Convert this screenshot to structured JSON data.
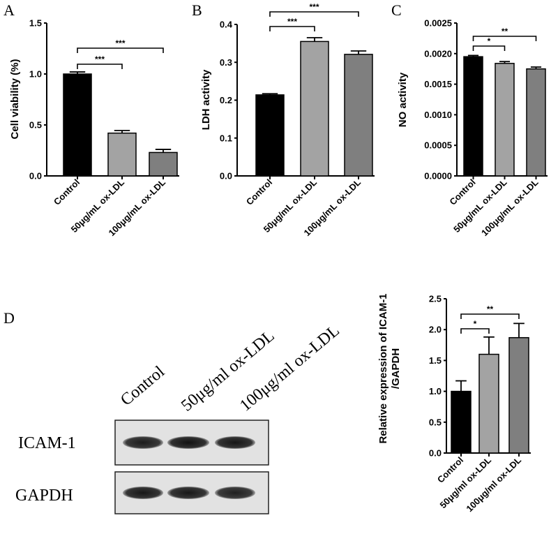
{
  "panel_letters": {
    "a": "A",
    "b": "B",
    "c": "C",
    "d": "D"
  },
  "chart_data": [
    {
      "id": "A",
      "type": "bar",
      "ylabel": "Cell viability (%)",
      "categories": [
        "Control",
        "50μg/mL ox-LDL",
        "100μg/mL ox-LDL"
      ],
      "values": [
        1.0,
        0.42,
        0.23
      ],
      "errors": [
        0.02,
        0.025,
        0.03
      ],
      "ylim": [
        0,
        1.5
      ],
      "yticks": [
        0.0,
        0.5,
        1.0,
        1.5
      ],
      "tick_labels": [
        "0.0",
        "0.5",
        "1.0",
        "1.5"
      ],
      "colors": [
        "#000000",
        "#a3a3a3",
        "#7f7f7f"
      ],
      "significance": [
        {
          "from": 0,
          "to": 1,
          "label": "***"
        },
        {
          "from": 0,
          "to": 2,
          "label": "***"
        }
      ]
    },
    {
      "id": "B",
      "type": "bar",
      "ylabel": "LDH activity",
      "categories": [
        "Control",
        "50μg/mL ox-LDL",
        "100μg/mL ox-LDL"
      ],
      "values": [
        0.214,
        0.355,
        0.321
      ],
      "errors": [
        0.003,
        0.01,
        0.009
      ],
      "ylim": [
        0,
        0.4
      ],
      "yticks": [
        0.0,
        0.1,
        0.2,
        0.3,
        0.4
      ],
      "tick_labels": [
        "0.0",
        "0.1",
        "0.2",
        "0.3",
        "0.4"
      ],
      "colors": [
        "#000000",
        "#a3a3a3",
        "#7f7f7f"
      ],
      "significance": [
        {
          "from": 0,
          "to": 1,
          "label": "***"
        },
        {
          "from": 0,
          "to": 2,
          "label": "***"
        }
      ]
    },
    {
      "id": "C",
      "type": "bar",
      "ylabel": "NO activity",
      "categories": [
        "Control",
        "50μg/mL ox-LDL",
        "100μg/mL ox-LDL"
      ],
      "values": [
        0.00195,
        0.00184,
        0.00175
      ],
      "errors": [
        2e-05,
        3e-05,
        3e-05
      ],
      "ylim": [
        0,
        0.0025
      ],
      "yticks": [
        0.0,
        0.0005,
        0.001,
        0.0015,
        0.002,
        0.0025
      ],
      "tick_labels": [
        "0.0000",
        "0.0005",
        "0.0010",
        "0.0015",
        "0.0020",
        "0.0025"
      ],
      "colors": [
        "#000000",
        "#a3a3a3",
        "#7f7f7f"
      ],
      "significance": [
        {
          "from": 0,
          "to": 1,
          "label": "*"
        },
        {
          "from": 0,
          "to": 2,
          "label": "**"
        }
      ]
    },
    {
      "id": "D",
      "type": "bar",
      "ylabel": "Relative expression of ICAM-1\n/GAPDH",
      "categories": [
        "Control",
        "50μg/ml ox-LDL",
        "100μg/ml ox-LDL"
      ],
      "values": [
        1.0,
        1.6,
        1.87
      ],
      "errors": [
        0.17,
        0.28,
        0.23
      ],
      "ylim": [
        0,
        2.5
      ],
      "yticks": [
        0.0,
        0.5,
        1.0,
        1.5,
        2.0,
        2.5
      ],
      "tick_labels": [
        "0.0",
        "0.5",
        "1.0",
        "1.5",
        "2.0",
        "2.5"
      ],
      "colors": [
        "#000000",
        "#a3a3a3",
        "#7f7f7f"
      ],
      "significance": [
        {
          "from": 0,
          "to": 1,
          "label": "*"
        },
        {
          "from": 0,
          "to": 2,
          "label": "**"
        }
      ]
    }
  ],
  "western_blot": {
    "lane_labels": [
      "Control",
      "50μg/ml ox-LDL",
      "100μg/ml ox-LDL"
    ],
    "rows": [
      {
        "label": "ICAM-1",
        "intensity": [
          0.82,
          0.88,
          0.86
        ]
      },
      {
        "label": "GAPDH",
        "intensity": [
          0.85,
          0.85,
          0.8
        ]
      }
    ]
  }
}
